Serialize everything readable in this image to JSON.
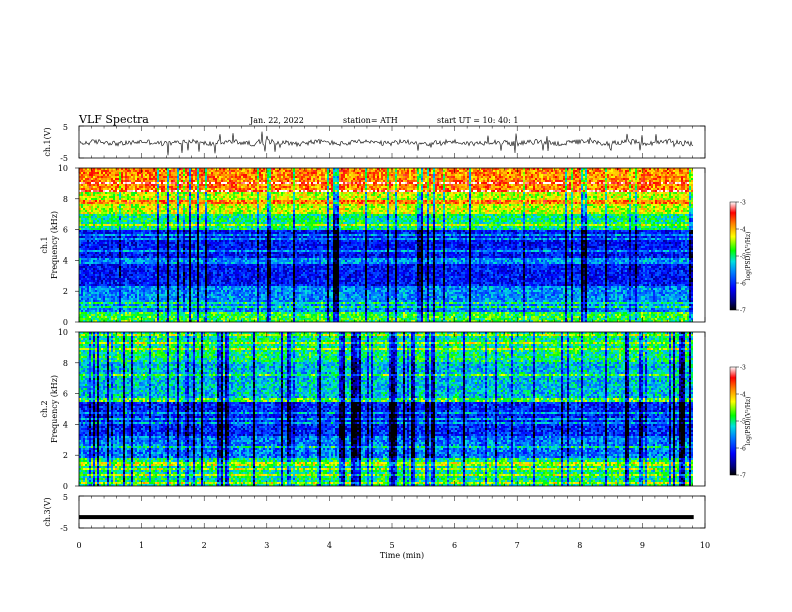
{
  "header": {
    "title": "VLF  Spectra",
    "date": "Jan. 22, 2022",
    "station": "station= ATH",
    "start": "start  UT  =    10: 40: 1"
  },
  "chart_data": [
    {
      "type": "line",
      "name": "ch1-waveform",
      "ylabel": "ch.1(V)",
      "ylim": [
        -5,
        5
      ],
      "yticks": [
        "5",
        "-5"
      ],
      "xlim": [
        0,
        10
      ]
    },
    {
      "type": "heatmap",
      "name": "ch1-spectrogram",
      "ylabel_line1": "ch.1",
      "ylabel_line2": "Frequency  (kHz)",
      "ylim": [
        0,
        10
      ],
      "yticks": [
        "0",
        "2",
        "4",
        "6",
        "8",
        "10"
      ],
      "xlim": [
        0,
        10
      ],
      "data_end_min": 9.82,
      "colorbar": {
        "label": "log(PSD)(V²/Hz)",
        "range": [
          -7,
          -3
        ],
        "ticks": [
          "-3",
          "-4",
          "-5",
          "-6",
          "-7"
        ]
      }
    },
    {
      "type": "heatmap",
      "name": "ch2-spectrogram",
      "ylabel_line1": "ch.2",
      "ylabel_line2": "Frequency  (kHz)",
      "ylim": [
        0,
        10
      ],
      "yticks": [
        "0",
        "2",
        "4",
        "6",
        "8",
        "10"
      ],
      "xlim": [
        0,
        10
      ],
      "data_end_min": 9.82,
      "colorbar": {
        "label": "log(PSD)(V²/Hz)",
        "range": [
          -7,
          -3
        ],
        "ticks": [
          "-3",
          "-4",
          "-5",
          "-6",
          "-7"
        ]
      }
    },
    {
      "type": "line",
      "name": "ch3-waveform",
      "ylabel": "ch.3(V)",
      "ylim": [
        -5,
        5
      ],
      "yticks": [
        "5",
        "-5"
      ],
      "xlim": [
        0,
        10
      ],
      "level_v": -1.6
    }
  ],
  "xaxis": {
    "label": "Time  (min)",
    "ticks": [
      "0",
      "1",
      "2",
      "3",
      "4",
      "5",
      "6",
      "7",
      "8",
      "9",
      "10"
    ]
  }
}
